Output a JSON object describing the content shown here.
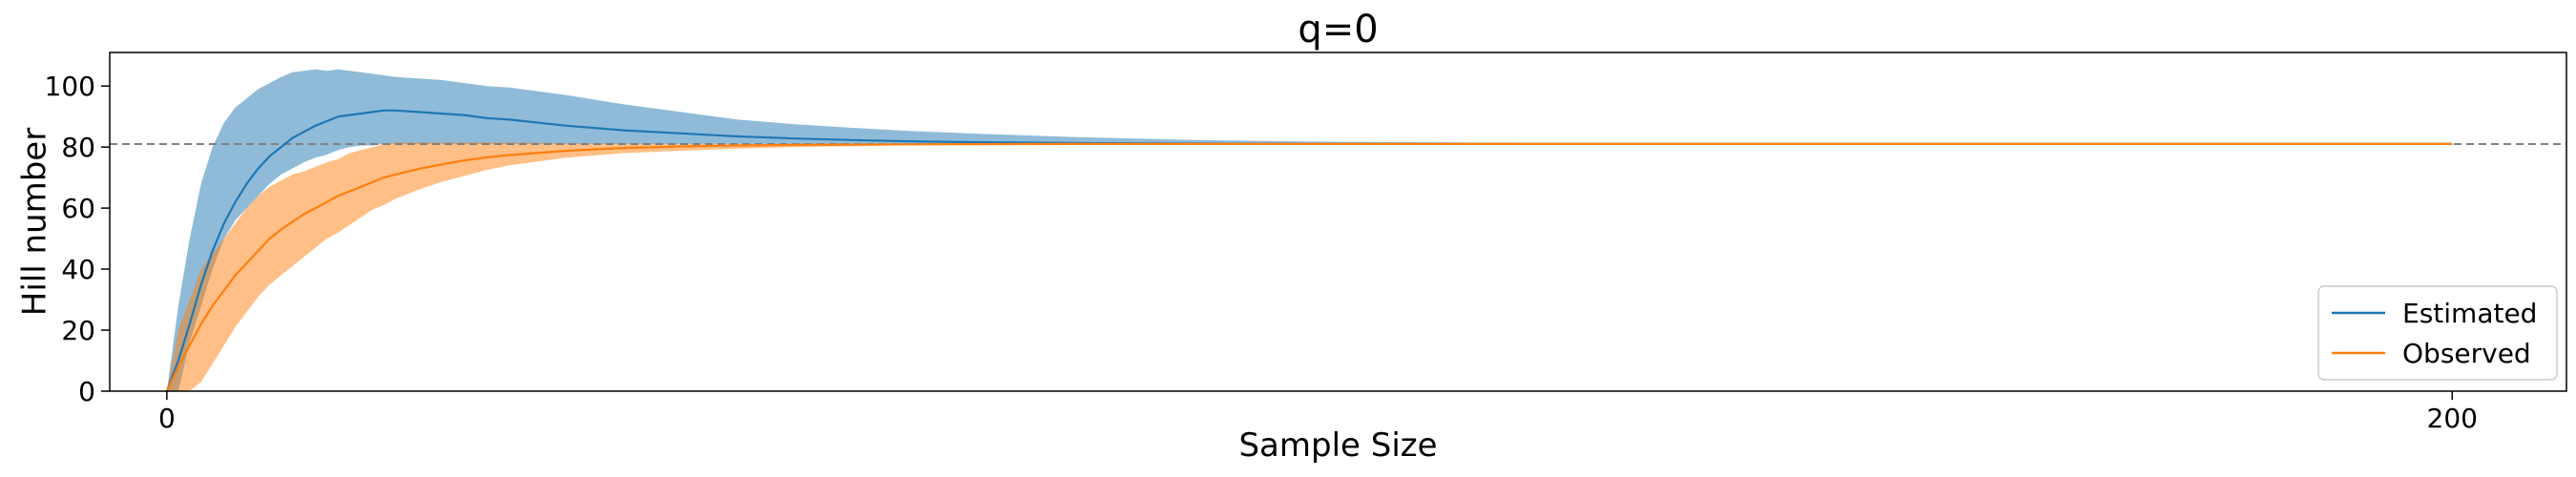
{
  "chart_data": {
    "type": "line",
    "title": "q=0",
    "xlabel": "Sample Size",
    "ylabel": "Hill number",
    "xlim": [
      -5,
      210
    ],
    "ylim": [
      0,
      111
    ],
    "xticks": [
      0,
      200
    ],
    "yticks": [
      0,
      20,
      40,
      60,
      80,
      100
    ],
    "grid": false,
    "legend_position": "lower-right",
    "reference_line": {
      "y": 81,
      "style": "dashed",
      "color": "#808080"
    },
    "series": [
      {
        "name": "Estimated",
        "color": "#1f77b4",
        "band_color": "#1f77b4",
        "x": [
          0,
          1,
          2,
          3,
          4,
          5,
          6,
          7,
          8,
          9,
          10,
          11,
          12,
          13,
          14,
          15,
          16,
          17,
          18,
          19,
          20,
          22,
          24,
          26,
          28,
          30,
          35,
          40,
          45,
          50,
          55,
          60,
          65,
          70,
          80,
          90,
          100,
          120,
          140,
          160,
          180,
          200
        ],
        "values": [
          0,
          10,
          22,
          35,
          46,
          55,
          62,
          68,
          73,
          77,
          80,
          83,
          85,
          87,
          88.5,
          90,
          90.5,
          91,
          91.5,
          92,
          92,
          91.5,
          91,
          90.5,
          89.5,
          89,
          87,
          85.5,
          84.5,
          83.5,
          82.8,
          82.3,
          81.9,
          81.6,
          81.3,
          81.15,
          81.05,
          81,
          81,
          81,
          81,
          81
        ],
        "upper": [
          0,
          28,
          50,
          68,
          80,
          88,
          93,
          96,
          99,
          101,
          103,
          104.5,
          105,
          105.5,
          105,
          105.5,
          105,
          104.5,
          104,
          103.5,
          103,
          102.5,
          102,
          101,
          100,
          99.5,
          97,
          94,
          91.5,
          89,
          87.5,
          86.3,
          85.3,
          84.5,
          83.2,
          82.3,
          81.8,
          81.3,
          81.1,
          81,
          81,
          81
        ],
        "lower": [
          0,
          0,
          16,
          28,
          40,
          50,
          56,
          60,
          64,
          68,
          71,
          73,
          75,
          76.5,
          77.5,
          79,
          80,
          80.5,
          80.5,
          81,
          81,
          81,
          81,
          81,
          81,
          81,
          81,
          81,
          81,
          81,
          81,
          81,
          81,
          81,
          81,
          81,
          81,
          81,
          81,
          81,
          81,
          81
        ]
      },
      {
        "name": "Observed",
        "color": "#ff7f0e",
        "band_color": "#ff7f0e",
        "x": [
          0,
          1,
          2,
          3,
          4,
          5,
          6,
          7,
          8,
          9,
          10,
          11,
          12,
          13,
          14,
          15,
          16,
          17,
          18,
          19,
          20,
          22,
          24,
          26,
          28,
          30,
          35,
          40,
          45,
          50,
          55,
          60,
          65,
          70,
          80,
          90,
          100,
          120,
          140,
          160,
          180,
          200
        ],
        "values": [
          0,
          8,
          15,
          22,
          28,
          33,
          38,
          42,
          46,
          50,
          53,
          55.5,
          58,
          60,
          62,
          64,
          65.5,
          67,
          68.5,
          70,
          71,
          72.8,
          74.3,
          75.6,
          76.6,
          77.4,
          78.8,
          79.7,
          80.2,
          80.5,
          80.7,
          80.8,
          80.9,
          80.95,
          81,
          81,
          81,
          81,
          81,
          81,
          81,
          81
        ],
        "upper": [
          0,
          20,
          30,
          40,
          45,
          50,
          55,
          60,
          64,
          67,
          69,
          71,
          72,
          73.5,
          75,
          76,
          78,
          79,
          80,
          81,
          81.5,
          81.5,
          81.5,
          81.5,
          81.5,
          81.5,
          81.3,
          81.2,
          81.1,
          81,
          81,
          81,
          81,
          81,
          81,
          81,
          81,
          81,
          81,
          81,
          81,
          81
        ],
        "lower": [
          0,
          0,
          0,
          3,
          9,
          15,
          21,
          26,
          31,
          35,
          38,
          41,
          44,
          47,
          50,
          52,
          54.5,
          57,
          59.5,
          61,
          63,
          66,
          68.5,
          70.5,
          72.5,
          74,
          76.5,
          78,
          78.8,
          79.5,
          80,
          80.3,
          80.6,
          80.8,
          81,
          81,
          81,
          81,
          81,
          81,
          81,
          81
        ]
      }
    ]
  }
}
